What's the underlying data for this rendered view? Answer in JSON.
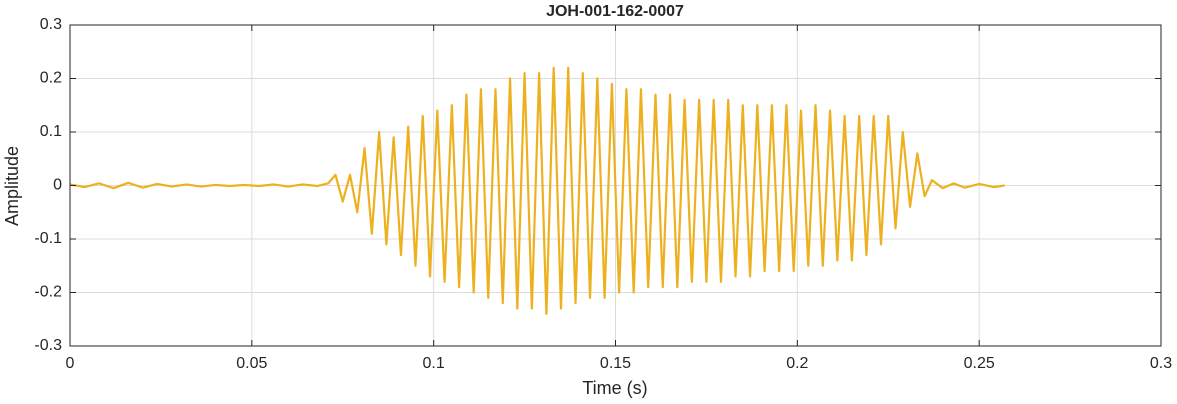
{
  "chart_data": {
    "type": "line",
    "title": "JOH-001-162-0007",
    "x_label": "Time (s)",
    "y_label": "Amplitude",
    "color": "#EDB120",
    "grid": true,
    "xlim": [
      0,
      0.3
    ],
    "xticks": [
      0,
      0.05,
      0.1,
      0.15,
      0.2,
      0.25,
      0.3
    ],
    "ylim": [
      -0.3,
      0.3
    ],
    "yticks": [
      -0.3,
      -0.2,
      -0.1,
      0,
      0.1,
      0.2,
      0.3
    ],
    "x": [
      0,
      0.004,
      0.008,
      0.012,
      0.016,
      0.02,
      0.024,
      0.028,
      0.032,
      0.036,
      0.04,
      0.044,
      0.048,
      0.052,
      0.056,
      0.06,
      0.064,
      0.068,
      0.071,
      0.073,
      0.075,
      0.077,
      0.079,
      0.081,
      0.083,
      0.085,
      0.087,
      0.089,
      0.091,
      0.093,
      0.095,
      0.097,
      0.099,
      0.101,
      0.103,
      0.105,
      0.107,
      0.109,
      0.111,
      0.113,
      0.115,
      0.117,
      0.119,
      0.121,
      0.123,
      0.125,
      0.127,
      0.129,
      0.131,
      0.133,
      0.135,
      0.137,
      0.139,
      0.141,
      0.143,
      0.145,
      0.147,
      0.149,
      0.151,
      0.153,
      0.155,
      0.157,
      0.159,
      0.161,
      0.163,
      0.165,
      0.167,
      0.169,
      0.171,
      0.173,
      0.175,
      0.177,
      0.179,
      0.181,
      0.183,
      0.185,
      0.187,
      0.189,
      0.191,
      0.193,
      0.195,
      0.197,
      0.199,
      0.201,
      0.203,
      0.205,
      0.207,
      0.209,
      0.211,
      0.213,
      0.215,
      0.217,
      0.219,
      0.221,
      0.223,
      0.225,
      0.227,
      0.229,
      0.231,
      0.233,
      0.235,
      0.237,
      0.24,
      0.243,
      0.246,
      0.25,
      0.254,
      0.257
    ],
    "values": [
      0.002,
      -0.003,
      0.004,
      -0.005,
      0.005,
      -0.004,
      0.003,
      -0.002,
      0.002,
      -0.002,
      0.001,
      -0.001,
      0.001,
      -0.001,
      0.002,
      -0.002,
      0.002,
      -0.001,
      0.004,
      0.02,
      -0.03,
      0.02,
      -0.05,
      0.07,
      -0.09,
      0.1,
      -0.11,
      0.09,
      -0.13,
      0.11,
      -0.15,
      0.13,
      -0.17,
      0.14,
      -0.18,
      0.15,
      -0.19,
      0.17,
      -0.2,
      0.18,
      -0.21,
      0.18,
      -0.22,
      0.2,
      -0.23,
      0.21,
      -0.23,
      0.21,
      -0.24,
      0.22,
      -0.23,
      0.22,
      -0.22,
      0.21,
      -0.21,
      0.2,
      -0.21,
      0.19,
      -0.2,
      0.18,
      -0.2,
      0.18,
      -0.19,
      0.17,
      -0.19,
      0.17,
      -0.19,
      0.16,
      -0.18,
      0.16,
      -0.18,
      0.16,
      -0.18,
      0.16,
      -0.17,
      0.15,
      -0.17,
      0.15,
      -0.16,
      0.15,
      -0.16,
      0.15,
      -0.16,
      0.14,
      -0.15,
      0.15,
      -0.15,
      0.14,
      -0.14,
      0.13,
      -0.14,
      0.13,
      -0.13,
      0.13,
      -0.11,
      0.13,
      -0.08,
      0.1,
      -0.04,
      0.06,
      -0.02,
      0.01,
      -0.005,
      0.004,
      -0.004,
      0.003,
      -0.003,
      0
    ]
  }
}
